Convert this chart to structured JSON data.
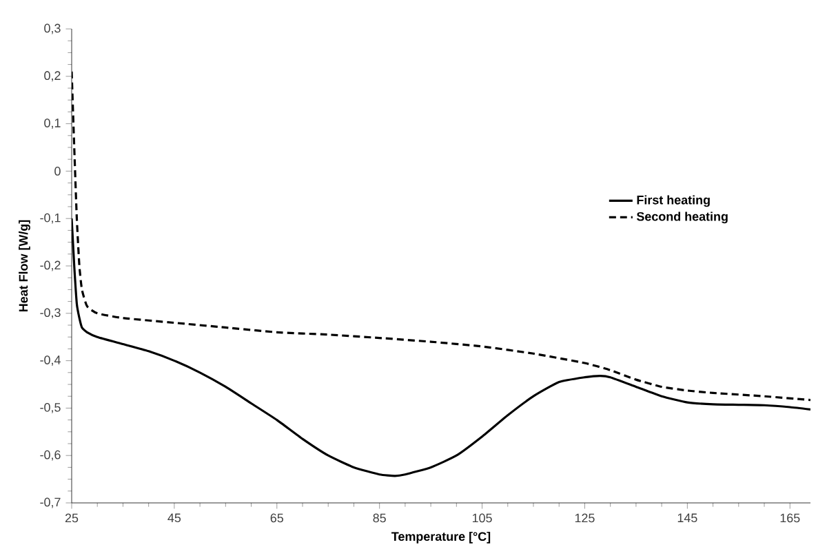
{
  "chart_data": {
    "type": "line",
    "xlabel": "Temperature [°C]",
    "ylabel": "Heat Flow [W/g]",
    "xlim": [
      25,
      169
    ],
    "xticks": [
      25,
      45,
      65,
      85,
      105,
      125,
      145,
      165
    ],
    "ylim": [
      -0.7,
      0.3
    ],
    "yticks": [
      {
        "value": -0.7,
        "label": "-0,7"
      },
      {
        "value": -0.6,
        "label": "-0,6"
      },
      {
        "value": -0.5,
        "label": "-0,5"
      },
      {
        "value": -0.4,
        "label": "-0,4"
      },
      {
        "value": -0.3,
        "label": "-0,3"
      },
      {
        "value": -0.2,
        "label": "-0,2"
      },
      {
        "value": -0.1,
        "label": "-0,1"
      },
      {
        "value": 0,
        "label": "0"
      },
      {
        "value": 0.1,
        "label": "0,1"
      },
      {
        "value": 0.2,
        "label": "0,2"
      },
      {
        "value": 0.3,
        "label": "0,3"
      }
    ],
    "grid": false,
    "legend": "right",
    "marker": "none",
    "series": [
      {
        "name": "First heating",
        "color": "#000000",
        "line_style": "solid",
        "x": [
          25,
          25.5,
          26,
          26.5,
          27,
          28,
          30,
          35,
          40,
          45,
          50,
          55,
          60,
          65,
          70,
          75,
          80,
          85,
          88,
          90,
          95,
          100,
          105,
          110,
          115,
          120,
          125,
          128,
          130,
          135,
          140,
          145,
          150,
          155,
          160,
          165,
          169
        ],
        "values": [
          -0.1,
          -0.2,
          -0.28,
          -0.31,
          -0.33,
          -0.34,
          -0.35,
          -0.365,
          -0.38,
          -0.4,
          -0.425,
          -0.455,
          -0.49,
          -0.525,
          -0.565,
          -0.6,
          -0.625,
          -0.64,
          -0.643,
          -0.64,
          -0.625,
          -0.6,
          -0.56,
          -0.515,
          -0.475,
          -0.445,
          -0.435,
          -0.432,
          -0.435,
          -0.455,
          -0.475,
          -0.488,
          -0.492,
          -0.493,
          -0.494,
          -0.498,
          -0.503
        ]
      },
      {
        "name": "Second heating",
        "color": "#000000",
        "line_style": "dashed",
        "x": [
          25,
          25.5,
          26,
          26.5,
          27,
          28,
          30,
          35,
          45,
          55,
          65,
          75,
          85,
          95,
          105,
          115,
          125,
          130,
          135,
          140,
          145,
          150,
          160,
          169
        ],
        "values": [
          0.21,
          0.05,
          -0.1,
          -0.2,
          -0.25,
          -0.285,
          -0.3,
          -0.31,
          -0.32,
          -0.33,
          -0.34,
          -0.345,
          -0.352,
          -0.36,
          -0.37,
          -0.385,
          -0.405,
          -0.42,
          -0.44,
          -0.455,
          -0.463,
          -0.468,
          -0.475,
          -0.483
        ]
      }
    ]
  }
}
